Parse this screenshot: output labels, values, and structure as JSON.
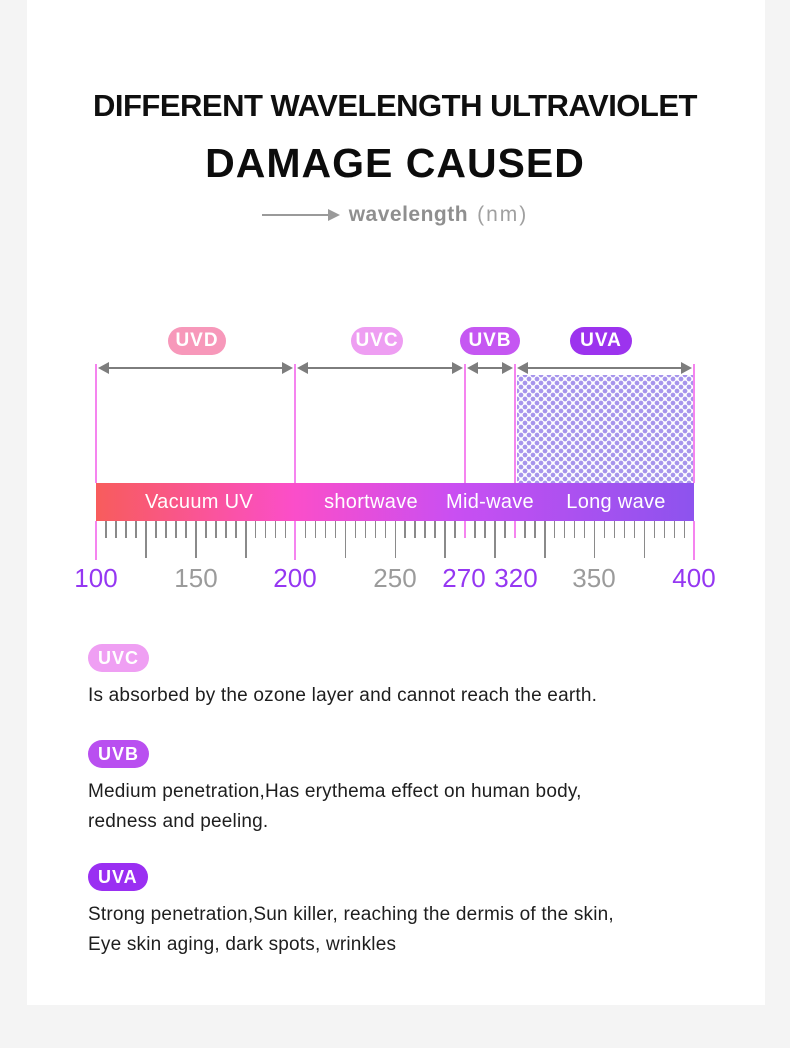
{
  "title": {
    "line1": "DIFFERENT WAVELENGTH ULTRAVIOLET",
    "line2": "DAMAGE CAUSED"
  },
  "axis_caption": {
    "label": "wavelength",
    "unit": "(nm)"
  },
  "colors": {
    "page_bg": "#f4f4f4",
    "card_bg": "#ffffff",
    "guide_line": "#f584ef",
    "dim_arrow": "#7d7d7d",
    "tick_gray": "#8a8a8a",
    "number_highlight": "#9537f2",
    "number_muted": "#9b9b9b",
    "pattern_dot": "#a795ec",
    "bar_gradient": [
      "#f85c5c",
      "#fb4ec9",
      "#c94ff2",
      "#8d53ee"
    ]
  },
  "chart_data": {
    "type": "diagram-scale",
    "title": "DIFFERENT WAVELENGTH ULTRAVIOLET DAMAGE CAUSED",
    "xlabel": "wavelength (nm)",
    "axis_range_nm": [
      100,
      400
    ],
    "bands": [
      {
        "name": "UVD",
        "badge_color": "#f798ba",
        "segment_label": "Vacuum UV",
        "range_nm": [
          100,
          200
        ],
        "hatched": false
      },
      {
        "name": "UVC",
        "badge_color": "#ee9ef2",
        "segment_label": "shortwave",
        "range_nm": [
          200,
          270
        ],
        "hatched": false
      },
      {
        "name": "UVB",
        "badge_color": "#c557f2",
        "segment_label": "Mid-wave",
        "range_nm": [
          270,
          320
        ],
        "hatched": false
      },
      {
        "name": "UVA",
        "badge_color": "#9c33ee",
        "segment_label": "Long wave",
        "range_nm": [
          320,
          400
        ],
        "hatched": true
      }
    ],
    "axis_ticks": [
      {
        "value": 100,
        "highlight": true
      },
      {
        "value": 150,
        "highlight": false
      },
      {
        "value": 200,
        "highlight": true
      },
      {
        "value": 250,
        "highlight": false
      },
      {
        "value": 270,
        "highlight": true
      },
      {
        "value": 320,
        "highlight": true
      },
      {
        "value": 350,
        "highlight": false
      },
      {
        "value": 400,
        "highlight": true
      }
    ]
  },
  "sections": [
    {
      "badge": "UVC",
      "badge_color": "#ef9ff3",
      "lines": [
        "Is absorbed by the ozone layer and cannot reach the earth."
      ]
    },
    {
      "badge": "UVB",
      "badge_color": "#b94ff0",
      "lines": [
        "Medium penetration,Has erythema effect on human body,",
        "redness and peeling."
      ]
    },
    {
      "badge": "UVA",
      "badge_color": "#9a2ff2",
      "lines": [
        "Strong penetration,Sun killer, reaching the dermis of the skin,",
        "Eye skin aging, dark spots, wrinkles"
      ]
    }
  ]
}
